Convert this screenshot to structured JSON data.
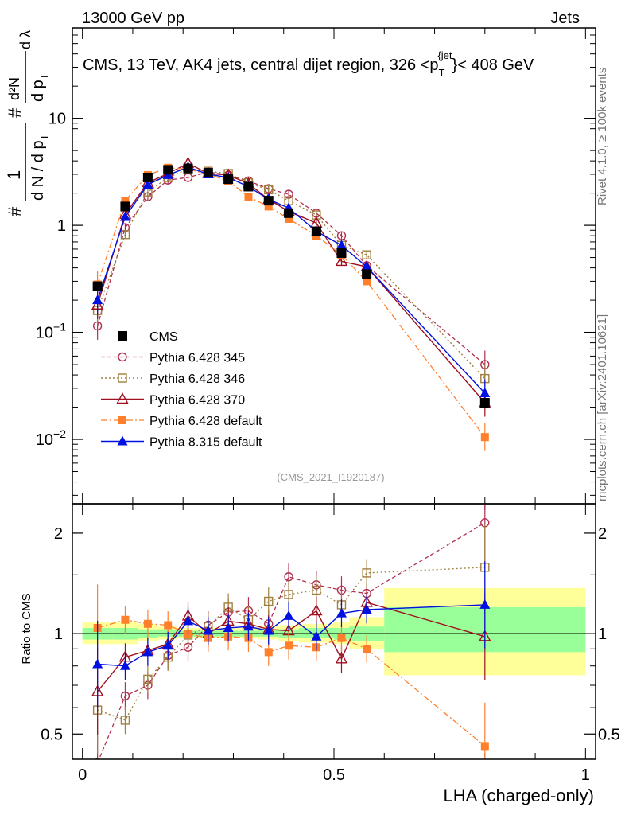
{
  "header": {
    "left": "13000 GeV pp",
    "right": "Jets",
    "side_rivet": "Rivet 4.1.0, ≥ 100k events",
    "side_mcplots": "mcplots.cern.ch [arXiv:2401.10621]",
    "analysis_id": "(CMS_2021_I1920187)"
  },
  "colors": {
    "yellow_band": "#ffff99",
    "green_band": "#99ff99",
    "cms": "#000000",
    "p345": "#b03050",
    "p346": "#a08040",
    "p370": "#a01020",
    "p6def": "#ff7f2a",
    "p8def": "#0010e0"
  },
  "chart_data": [
    {
      "type": "scatter",
      "title": "CMS, 13 TeV, AK4 jets, central dijet region, 326 <p_T^{jet}< 408 GeV",
      "title_parts": {
        "prefix": "CMS, 13 TeV, AK4 jets, central dijet region, 326 <p",
        "sup": "{jet",
        "sub": "T",
        "suffix": "}< 408 GeV"
      },
      "ylabel_parts": {
        "num1": "1",
        "hash": "#",
        "den": "d N / d p",
        "sub": "T",
        "num2": "d²N",
        "den2": "d p",
        "dl": "d λ"
      },
      "xlabel": "",
      "yscale": "log",
      "ylim": [
        0.0025,
        70
      ],
      "xlim": [
        -0.02,
        1.02
      ],
      "yticks": [
        {
          "value": 0.01,
          "label": "10",
          "exp": "−2"
        },
        {
          "value": 0.1,
          "label": "10",
          "exp": "−1"
        },
        {
          "value": 1,
          "label": "1",
          "exp": ""
        },
        {
          "value": 10,
          "label": "10",
          "exp": ""
        }
      ],
      "x": [
        0.03,
        0.085,
        0.13,
        0.17,
        0.21,
        0.25,
        0.29,
        0.33,
        0.37,
        0.41,
        0.465,
        0.515,
        0.565,
        0.8
      ],
      "series": [
        {
          "name": "CMS",
          "key": "cms",
          "marker": "square-filled",
          "line": "none",
          "values": [
            0.27,
            1.5,
            2.8,
            3.3,
            3.4,
            3.1,
            2.7,
            2.3,
            1.7,
            1.3,
            0.88,
            0.55,
            0.35,
            0.022
          ]
        },
        {
          "name": "Pythia 6.428 345",
          "key": "p345",
          "marker": "circle-open",
          "line": "dashed",
          "values": [
            0.115,
            0.95,
            1.85,
            2.65,
            2.8,
            3.15,
            2.95,
            2.6,
            2.2,
            1.95,
            1.3,
            0.8,
            0.42,
            0.05
          ]
        },
        {
          "name": "Pythia 6.428 346",
          "key": "p346",
          "marker": "square-open",
          "line": "dotted",
          "values": [
            0.16,
            0.82,
            2.05,
            2.8,
            3.35,
            3.2,
            3.05,
            2.5,
            2.15,
            1.7,
            1.25,
            0.65,
            0.53,
            0.037
          ]
        },
        {
          "name": "Pythia 6.428 370",
          "key": "p370",
          "marker": "triangle-open",
          "line": "solid",
          "values": [
            0.18,
            1.27,
            2.5,
            3.05,
            3.8,
            3.05,
            2.95,
            2.45,
            1.75,
            1.35,
            1.05,
            0.46,
            0.41,
            0.022
          ]
        },
        {
          "name": "Pythia 6.428 default",
          "key": "p6def",
          "marker": "square-filled-small",
          "line": "dashdot",
          "values": [
            0.28,
            1.7,
            2.95,
            3.45,
            3.35,
            3.0,
            2.6,
            1.85,
            1.5,
            1.15,
            0.8,
            0.53,
            0.3,
            0.0105
          ]
        },
        {
          "name": "Pythia 8.315 default",
          "key": "p8def",
          "marker": "triangle-filled",
          "line": "solid",
          "values": [
            0.2,
            1.2,
            2.4,
            2.95,
            3.5,
            3.0,
            2.8,
            2.3,
            1.75,
            1.45,
            0.88,
            0.65,
            0.41,
            0.027
          ]
        }
      ],
      "legend_location": "lower-left"
    },
    {
      "type": "scatter",
      "title": "",
      "xlabel": "LHA (charged-only)",
      "ylabel": "Ratio to CMS",
      "yscale": "log",
      "ylim": [
        0.42,
        2.45
      ],
      "xlim": [
        -0.02,
        1.02
      ],
      "xticks": [
        {
          "value": 0,
          "label": "0"
        },
        {
          "value": 0.5,
          "label": "0.5"
        },
        {
          "value": 1,
          "label": "1"
        }
      ],
      "yticks": [
        {
          "value": 0.5,
          "label": "0.5"
        },
        {
          "value": 1,
          "label": "1"
        },
        {
          "value": 2,
          "label": "2"
        }
      ],
      "bins": [
        0,
        0.06,
        0.11,
        0.15,
        0.19,
        0.23,
        0.27,
        0.31,
        0.35,
        0.39,
        0.43,
        0.5,
        0.53,
        0.6,
        1.0
      ],
      "band_yellow": [
        [
          0.93,
          1.08
        ],
        [
          0.93,
          1.08
        ],
        [
          0.95,
          1.07
        ],
        [
          0.96,
          1.05
        ],
        [
          0.97,
          1.04
        ],
        [
          0.97,
          1.04
        ],
        [
          0.97,
          1.04
        ],
        [
          0.97,
          1.04
        ],
        [
          0.96,
          1.05
        ],
        [
          0.95,
          1.06
        ],
        [
          0.94,
          1.07
        ],
        [
          0.93,
          1.08
        ],
        [
          0.9,
          1.12
        ],
        [
          0.75,
          1.37
        ]
      ],
      "band_green": [
        [
          0.96,
          1.04
        ],
        [
          0.96,
          1.04
        ],
        [
          0.97,
          1.03
        ],
        [
          0.98,
          1.03
        ],
        [
          0.98,
          1.02
        ],
        [
          0.98,
          1.02
        ],
        [
          0.98,
          1.02
        ],
        [
          0.98,
          1.02
        ],
        [
          0.98,
          1.03
        ],
        [
          0.97,
          1.03
        ],
        [
          0.97,
          1.04
        ],
        [
          0.96,
          1.04
        ],
        [
          0.95,
          1.05
        ],
        [
          0.88,
          1.2
        ]
      ],
      "x": [
        0.03,
        0.085,
        0.13,
        0.17,
        0.21,
        0.25,
        0.29,
        0.33,
        0.37,
        0.41,
        0.465,
        0.515,
        0.565,
        0.8
      ],
      "series": [
        {
          "key": "p345",
          "values": [
            0.41,
            0.65,
            0.7,
            0.86,
            0.91,
            1.06,
            1.16,
            1.17,
            1.07,
            1.48,
            1.4,
            1.35,
            1.32,
            2.15
          ]
        },
        {
          "key": "p346",
          "values": [
            0.59,
            0.55,
            0.73,
            0.85,
            0.99,
            1.05,
            1.2,
            1.1,
            1.25,
            1.31,
            1.35,
            1.22,
            1.52,
            1.58
          ]
        },
        {
          "key": "p370",
          "values": [
            0.67,
            0.85,
            0.89,
            0.93,
            1.13,
            1.0,
            1.09,
            1.07,
            1.03,
            1.02,
            1.17,
            0.84,
            1.24,
            0.98
          ]
        },
        {
          "key": "p6def",
          "values": [
            1.04,
            1.1,
            1.07,
            1.06,
            1.0,
            0.97,
            0.98,
            0.97,
            0.88,
            0.92,
            0.91,
            0.97,
            0.9,
            0.46
          ]
        },
        {
          "key": "p8def",
          "values": [
            0.81,
            0.8,
            0.88,
            0.92,
            1.09,
            1.02,
            1.04,
            1.05,
            1.02,
            1.13,
            0.98,
            1.15,
            1.18,
            1.22
          ]
        }
      ],
      "reference_line": 1
    }
  ]
}
